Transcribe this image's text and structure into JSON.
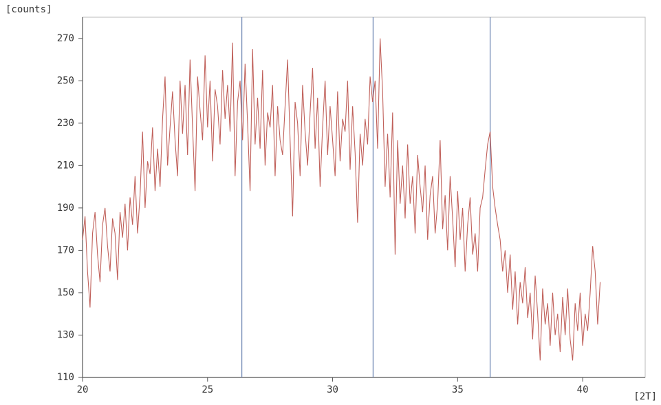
{
  "chart_data": {
    "type": "line",
    "y_label": "[counts]",
    "x_label": "[2T]",
    "xlim": [
      20,
      42.5
    ],
    "ylim": [
      110,
      280
    ],
    "xticks": [
      20,
      25,
      30,
      35,
      40
    ],
    "yticks": [
      110,
      130,
      150,
      170,
      190,
      210,
      230,
      250,
      270
    ],
    "reference_lines": [
      26.37,
      31.62,
      36.3
    ],
    "reference_color": "#7088b4",
    "x": [
      20.0,
      20.1,
      20.2,
      20.3,
      20.4,
      20.5,
      20.6,
      20.7,
      20.8,
      20.9,
      21.0,
      21.1,
      21.2,
      21.3,
      21.4,
      21.5,
      21.6,
      21.7,
      21.8,
      21.9,
      22.0,
      22.1,
      22.2,
      22.3,
      22.4,
      22.5,
      22.6,
      22.7,
      22.8,
      22.9,
      23.0,
      23.1,
      23.2,
      23.3,
      23.4,
      23.5,
      23.6,
      23.7,
      23.8,
      23.9,
      24.0,
      24.1,
      24.2,
      24.3,
      24.4,
      24.5,
      24.6,
      24.7,
      24.8,
      24.9,
      25.0,
      25.1,
      25.2,
      25.3,
      25.4,
      25.5,
      25.6,
      25.7,
      25.8,
      25.9,
      26.0,
      26.1,
      26.2,
      26.3,
      26.4,
      26.5,
      26.6,
      26.7,
      26.8,
      26.9,
      27.0,
      27.1,
      27.2,
      27.3,
      27.4,
      27.5,
      27.6,
      27.7,
      27.8,
      27.9,
      28.0,
      28.1,
      28.2,
      28.3,
      28.4,
      28.5,
      28.6,
      28.7,
      28.8,
      28.9,
      29.0,
      29.1,
      29.2,
      29.3,
      29.4,
      29.5,
      29.6,
      29.7,
      29.8,
      29.9,
      30.0,
      30.1,
      30.2,
      30.3,
      30.4,
      30.5,
      30.6,
      30.7,
      30.8,
      30.9,
      31.0,
      31.1,
      31.2,
      31.3,
      31.4,
      31.5,
      31.6,
      31.7,
      31.8,
      31.9,
      32.0,
      32.1,
      32.2,
      32.3,
      32.4,
      32.5,
      32.6,
      32.7,
      32.8,
      32.9,
      33.0,
      33.1,
      33.2,
      33.3,
      33.4,
      33.5,
      33.6,
      33.7,
      33.8,
      33.9,
      34.0,
      34.1,
      34.2,
      34.3,
      34.4,
      34.5,
      34.6,
      34.7,
      34.8,
      34.9,
      35.0,
      35.1,
      35.2,
      35.3,
      35.4,
      35.5,
      35.6,
      35.7,
      35.8,
      35.9,
      36.0,
      36.1,
      36.2,
      36.3,
      36.4,
      36.5,
      36.6,
      36.7,
      36.8,
      36.9,
      37.0,
      37.1,
      37.2,
      37.3,
      37.4,
      37.5,
      37.6,
      37.7,
      37.8,
      37.9,
      38.0,
      38.1,
      38.2,
      38.3,
      38.4,
      38.5,
      38.6,
      38.7,
      38.8,
      38.9,
      39.0,
      39.1,
      39.2,
      39.3,
      39.4,
      39.5,
      39.6,
      39.7,
      39.8,
      39.9,
      40.0,
      40.1,
      40.2,
      40.3,
      40.4,
      40.5,
      40.6,
      40.7
    ],
    "series": [
      {
        "color": "#c0605a",
        "values": [
          175,
          186,
          160,
          143,
          178,
          188,
          168,
          155,
          182,
          190,
          172,
          160,
          185,
          178,
          156,
          188,
          176,
          192,
          170,
          195,
          182,
          205,
          178,
          196,
          226,
          190,
          212,
          206,
          228,
          198,
          218,
          200,
          232,
          252,
          210,
          228,
          245,
          222,
          205,
          250,
          225,
          248,
          215,
          260,
          228,
          198,
          252,
          236,
          222,
          262,
          228,
          250,
          212,
          246,
          238,
          220,
          255,
          232,
          248,
          226,
          268,
          205,
          240,
          250,
          222,
          258,
          230,
          198,
          265,
          220,
          242,
          218,
          255,
          210,
          235,
          228,
          248,
          205,
          238,
          222,
          215,
          238,
          260,
          222,
          186,
          240,
          230,
          205,
          248,
          226,
          210,
          235,
          256,
          218,
          242,
          200,
          228,
          250,
          215,
          238,
          222,
          205,
          245,
          212,
          232,
          226,
          250,
          208,
          238,
          216,
          183,
          225,
          210,
          232,
          220,
          252,
          240,
          250,
          218,
          270,
          245,
          200,
          225,
          195,
          235,
          168,
          222,
          192,
          210,
          185,
          220,
          192,
          205,
          178,
          215,
          200,
          188,
          210,
          175,
          196,
          205,
          178,
          192,
          222,
          180,
          196,
          170,
          205,
          185,
          162,
          198,
          175,
          190,
          160,
          182,
          195,
          168,
          178,
          160,
          190,
          195,
          208,
          220,
          226,
          200,
          190,
          182,
          175,
          160,
          170,
          150,
          168,
          142,
          160,
          135,
          155,
          145,
          162,
          138,
          150,
          128,
          158,
          140,
          118,
          152,
          135,
          145,
          125,
          150,
          130,
          140,
          122,
          148,
          130,
          152,
          128,
          118,
          145,
          132,
          150,
          125,
          140,
          132,
          150,
          172,
          160,
          135,
          155
        ]
      }
    ]
  }
}
